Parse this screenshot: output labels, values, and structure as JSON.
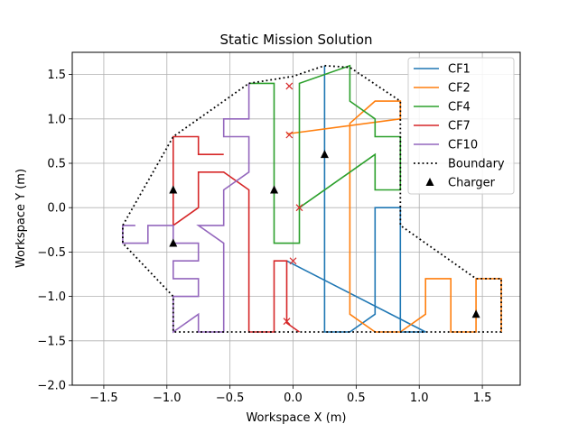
{
  "chart_data": {
    "type": "line",
    "title": "Static Mission Solution",
    "xlabel": "Workspace X (m)",
    "ylabel": "Workspace Y (m)",
    "xlim": [
      -1.75,
      1.8
    ],
    "ylim": [
      -2.0,
      1.75
    ],
    "xticks": [
      -1.5,
      -1.0,
      -0.5,
      0.0,
      0.5,
      1.0,
      1.5
    ],
    "xtick_labels": [
      "−1.5",
      "−1.0",
      "−0.5",
      "0.0",
      "0.5",
      "1.0",
      "1.5"
    ],
    "yticks": [
      -2.0,
      -1.5,
      -1.0,
      -0.5,
      0.0,
      0.5,
      1.0,
      1.5
    ],
    "ytick_labels": [
      "−2.0",
      "−1.5",
      "−1.0",
      "−0.5",
      "0.0",
      "0.5",
      "1.0",
      "1.5"
    ],
    "grid": true,
    "legend_position": "top-right",
    "series": [
      {
        "name": "CF1",
        "color": "#1f77b4",
        "style": "solid",
        "points": [
          [
            -0.05,
            -0.6
          ],
          [
            1.05,
            -1.4
          ],
          [
            0.85,
            -1.4
          ],
          [
            0.85,
            0.0
          ],
          [
            0.65,
            0.0
          ],
          [
            0.65,
            -1.2
          ],
          [
            0.45,
            -1.4
          ],
          [
            0.25,
            -1.4
          ],
          [
            0.25,
            1.6
          ]
        ]
      },
      {
        "name": "CF2",
        "color": "#ff7f0e",
        "style": "solid",
        "points": [
          [
            -0.05,
            0.83
          ],
          [
            0.85,
            1.0
          ],
          [
            0.85,
            1.2
          ],
          [
            0.65,
            1.2
          ],
          [
            0.45,
            0.95
          ],
          [
            0.45,
            -1.2
          ],
          [
            0.65,
            -1.4
          ],
          [
            0.85,
            -1.4
          ],
          [
            1.05,
            -1.2
          ],
          [
            1.05,
            -0.8
          ],
          [
            1.25,
            -0.8
          ],
          [
            1.25,
            -1.4
          ],
          [
            1.45,
            -1.4
          ],
          [
            1.45,
            -0.8
          ],
          [
            1.65,
            -0.8
          ],
          [
            1.65,
            -1.4
          ]
        ]
      },
      {
        "name": "CF4",
        "color": "#2ca02c",
        "style": "solid",
        "points": [
          [
            0.05,
            0.0
          ],
          [
            0.65,
            0.6
          ],
          [
            0.65,
            0.2
          ],
          [
            0.85,
            0.2
          ],
          [
            0.85,
            0.8
          ],
          [
            0.65,
            0.8
          ],
          [
            0.65,
            1.0
          ],
          [
            0.45,
            1.2
          ],
          [
            0.45,
            1.6
          ],
          [
            0.05,
            1.4
          ],
          [
            0.05,
            -0.4
          ],
          [
            -0.15,
            -0.4
          ],
          [
            -0.15,
            1.4
          ],
          [
            -0.35,
            1.4
          ]
        ]
      },
      {
        "name": "CF7",
        "color": "#d62728",
        "style": "solid",
        "points": [
          [
            0.05,
            -1.4
          ],
          [
            -0.05,
            -1.3
          ],
          [
            -0.05,
            -0.6
          ],
          [
            -0.15,
            -0.6
          ],
          [
            -0.15,
            -1.4
          ],
          [
            -0.35,
            -1.4
          ],
          [
            -0.35,
            0.2
          ],
          [
            -0.55,
            0.4
          ],
          [
            -0.75,
            0.4
          ],
          [
            -0.75,
            0.0
          ],
          [
            -0.95,
            -0.2
          ],
          [
            -0.95,
            0.8
          ],
          [
            -0.75,
            0.8
          ],
          [
            -0.75,
            0.6
          ],
          [
            -0.55,
            0.6
          ]
        ]
      },
      {
        "name": "CF10",
        "color": "#9467bd",
        "style": "solid",
        "points": [
          [
            -0.35,
            1.4
          ],
          [
            -0.35,
            1.0
          ],
          [
            -0.55,
            1.0
          ],
          [
            -0.55,
            0.8
          ],
          [
            -0.35,
            0.8
          ],
          [
            -0.35,
            0.4
          ],
          [
            -0.55,
            0.2
          ],
          [
            -0.55,
            -0.2
          ],
          [
            -0.75,
            -0.2
          ],
          [
            -0.55,
            -0.4
          ],
          [
            -0.55,
            -1.4
          ],
          [
            -0.75,
            -1.4
          ],
          [
            -0.75,
            -1.2
          ],
          [
            -0.95,
            -1.4
          ],
          [
            -0.95,
            -1.0
          ],
          [
            -0.75,
            -1.0
          ],
          [
            -0.75,
            -0.8
          ],
          [
            -0.95,
            -0.8
          ],
          [
            -0.95,
            -0.6
          ],
          [
            -0.75,
            -0.6
          ],
          [
            -0.75,
            -0.4
          ],
          [
            -0.95,
            -0.4
          ],
          [
            -0.95,
            -0.2
          ],
          [
            -1.15,
            -0.2
          ],
          [
            -1.15,
            -0.4
          ],
          [
            -1.35,
            -0.4
          ],
          [
            -1.35,
            -0.2
          ],
          [
            -1.25,
            -0.2
          ]
        ]
      },
      {
        "name": "Boundary",
        "color": "#000000",
        "style": "dotted",
        "points": [
          [
            -0.35,
            1.4
          ],
          [
            0.0,
            1.48
          ],
          [
            0.25,
            1.6
          ],
          [
            0.45,
            1.58
          ],
          [
            0.85,
            1.2
          ],
          [
            0.85,
            -0.2
          ],
          [
            1.45,
            -0.8
          ],
          [
            1.65,
            -0.8
          ],
          [
            1.65,
            -1.4
          ],
          [
            -0.95,
            -1.4
          ],
          [
            -0.95,
            -1.0
          ],
          [
            -1.35,
            -0.4
          ],
          [
            -1.35,
            -0.2
          ],
          [
            -0.95,
            0.8
          ],
          [
            -0.35,
            1.4
          ]
        ]
      }
    ],
    "chargers": {
      "name": "Charger",
      "color": "#000000",
      "marker": "triangle",
      "points": [
        [
          -0.95,
          0.2
        ],
        [
          -0.95,
          -0.4
        ],
        [
          -0.15,
          0.2
        ],
        [
          0.25,
          0.6
        ],
        [
          1.45,
          -1.2
        ]
      ]
    },
    "task_markers": {
      "color": "#d62728",
      "marker": "x",
      "points": [
        [
          -0.03,
          1.37
        ],
        [
          -0.03,
          0.82
        ],
        [
          0.05,
          0.0
        ],
        [
          0.0,
          -0.6
        ],
        [
          -0.05,
          -1.28
        ]
      ]
    }
  }
}
